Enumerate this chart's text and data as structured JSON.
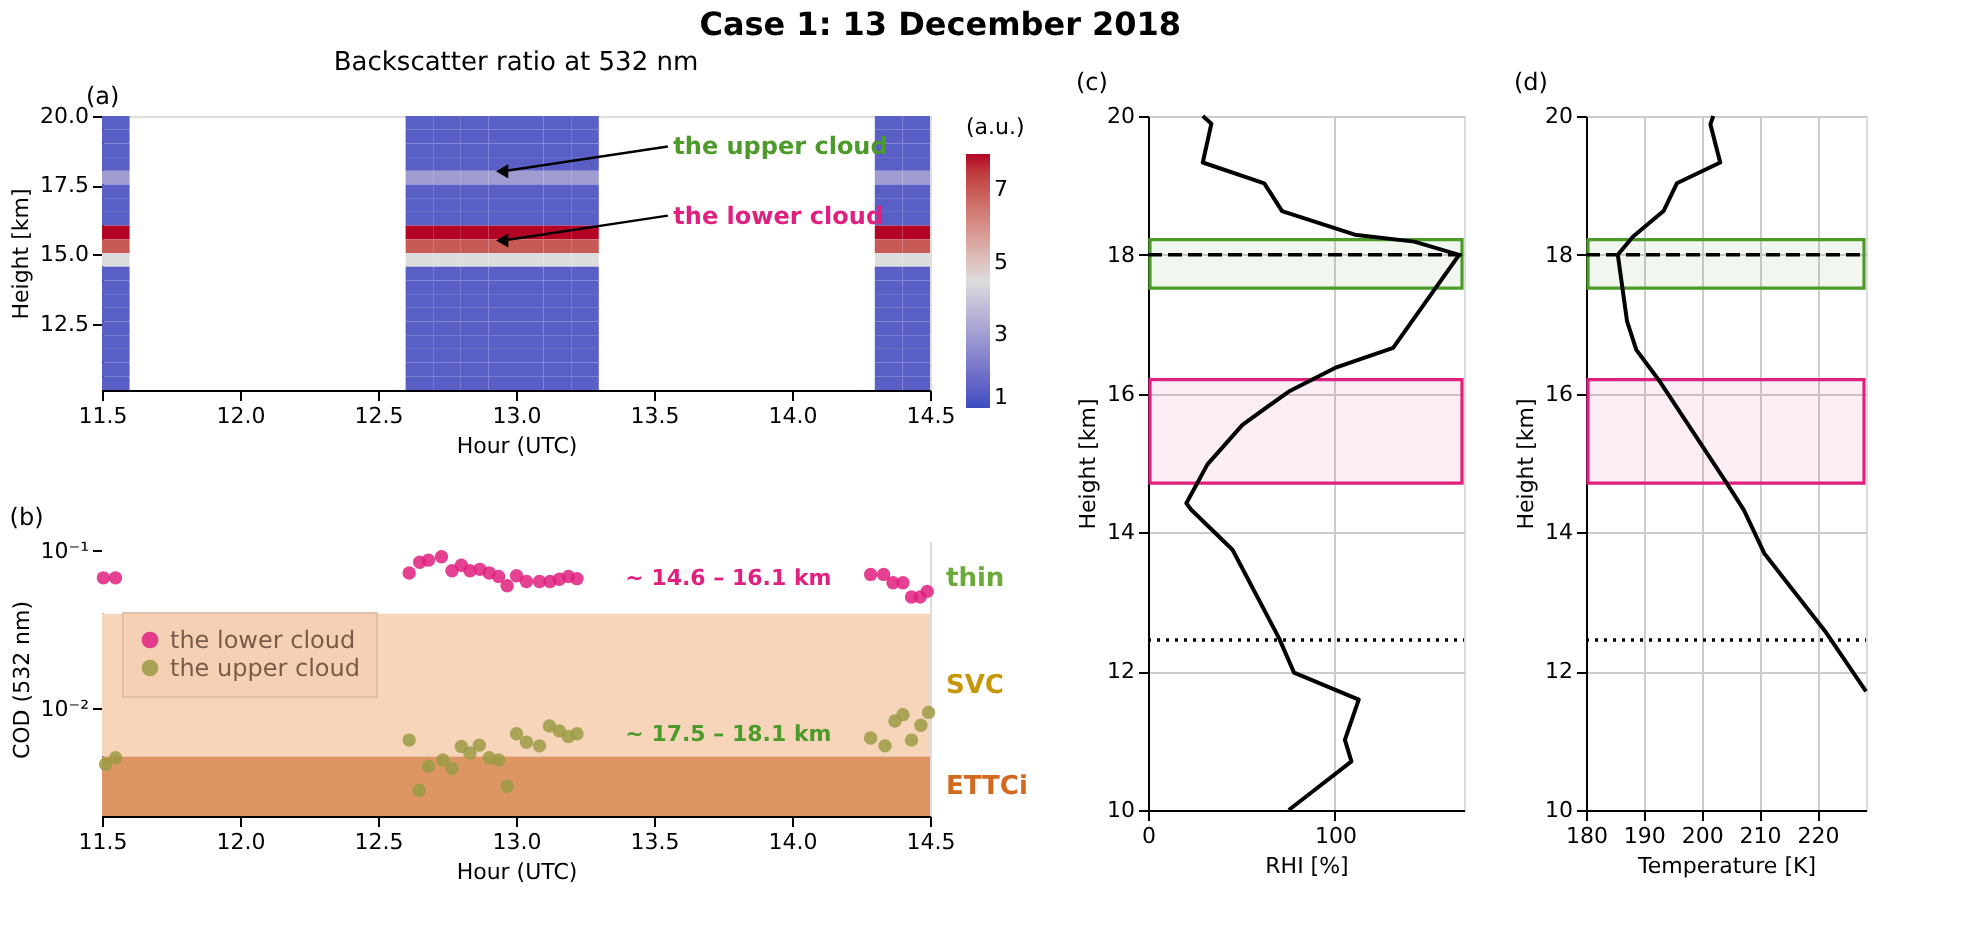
{
  "chart_data": [
    {
      "type": "heatmap",
      "title": "Case 1: 13 December 2018",
      "subtitle": "Backscatter ratio at 532 nm",
      "xlabel": "Hour (UTC)",
      "ylabel": "Height [km]",
      "clabel": "(a.u.)",
      "x": [
        11.55,
        11.65,
        11.75,
        11.85,
        11.95,
        12.05,
        12.15,
        12.25,
        12.35,
        12.45,
        12.55,
        12.65,
        12.75,
        12.85,
        12.95,
        13.05,
        13.15,
        13.25,
        13.35,
        13.45,
        13.55,
        13.65,
        13.75,
        13.85,
        13.95,
        14.05,
        14.15,
        14.25,
        14.35,
        14.45
      ],
      "cells": [
        [
          1.5,
          null,
          null,
          null,
          null,
          null,
          null,
          null,
          null,
          null,
          null,
          1.5,
          1.5,
          1.5,
          1.5,
          1.5,
          1.5,
          1.5,
          null,
          null,
          null,
          null,
          null,
          null,
          null,
          null,
          null,
          null,
          1.5,
          1.5
        ],
        [
          1.5,
          null,
          null,
          null,
          null,
          null,
          null,
          null,
          null,
          null,
          null,
          1.5,
          1.5,
          1.5,
          1.5,
          1.5,
          1.5,
          1.5,
          null,
          null,
          null,
          null,
          null,
          null,
          null,
          null,
          null,
          null,
          1.5,
          1.5
        ],
        [
          1.5,
          null,
          null,
          null,
          null,
          null,
          null,
          null,
          null,
          null,
          null,
          1.5,
          1.5,
          1.5,
          1.5,
          1.5,
          1.5,
          1.5,
          null,
          null,
          null,
          null,
          null,
          null,
          null,
          null,
          null,
          null,
          1.5,
          1.5
        ],
        [
          1.5,
          null,
          null,
          null,
          null,
          null,
          null,
          null,
          null,
          null,
          null,
          1.5,
          1.5,
          1.5,
          1.5,
          1.5,
          1.5,
          1.5,
          null,
          null,
          null,
          null,
          null,
          null,
          null,
          null,
          null,
          null,
          1.5,
          1.5
        ],
        [
          3,
          null,
          null,
          null,
          null,
          null,
          null,
          null,
          null,
          null,
          null,
          3,
          3,
          3,
          3,
          3,
          3,
          3,
          null,
          null,
          null,
          null,
          null,
          null,
          null,
          null,
          null,
          null,
          3,
          3
        ],
        [
          1.5,
          null,
          null,
          null,
          null,
          null,
          null,
          null,
          null,
          null,
          null,
          1.5,
          1.5,
          1.5,
          1.5,
          1.5,
          1.5,
          1.5,
          null,
          null,
          null,
          null,
          null,
          null,
          null,
          null,
          null,
          null,
          1.5,
          1.5
        ],
        [
          1.5,
          null,
          null,
          null,
          null,
          null,
          null,
          null,
          null,
          null,
          null,
          1.5,
          1.5,
          1.5,
          1.5,
          1.5,
          1.5,
          1.5,
          null,
          null,
          null,
          null,
          null,
          null,
          null,
          null,
          null,
          null,
          1.5,
          1.5
        ],
        [
          1.5,
          null,
          null,
          null,
          null,
          null,
          null,
          null,
          null,
          null,
          null,
          1.5,
          1.5,
          1.5,
          1.5,
          1.5,
          1.5,
          1.5,
          null,
          null,
          null,
          null,
          null,
          null,
          null,
          null,
          null,
          null,
          1.5,
          1.5
        ],
        [
          8,
          null,
          null,
          null,
          null,
          null,
          null,
          null,
          null,
          null,
          null,
          8,
          8,
          8,
          8,
          8,
          8,
          8,
          null,
          null,
          null,
          null,
          null,
          null,
          null,
          null,
          null,
          null,
          8,
          8
        ],
        [
          7,
          null,
          null,
          null,
          null,
          null,
          null,
          null,
          null,
          null,
          null,
          7,
          7,
          7,
          7,
          7,
          7,
          7,
          null,
          null,
          null,
          null,
          null,
          null,
          null,
          null,
          null,
          null,
          7,
          7
        ],
        [
          4.5,
          null,
          null,
          null,
          null,
          null,
          null,
          null,
          null,
          null,
          null,
          4.5,
          4.5,
          4.5,
          4.5,
          4.5,
          4.5,
          4.5,
          null,
          null,
          null,
          null,
          null,
          null,
          null,
          null,
          null,
          null,
          4.5,
          4.5
        ],
        [
          1.5,
          null,
          null,
          null,
          null,
          null,
          null,
          null,
          null,
          null,
          null,
          1.5,
          1.5,
          1.5,
          1.5,
          1.5,
          1.5,
          1.5,
          null,
          null,
          null,
          null,
          null,
          null,
          null,
          null,
          null,
          null,
          1.5,
          1.5
        ],
        [
          1.5,
          null,
          null,
          null,
          null,
          null,
          null,
          null,
          null,
          null,
          null,
          1.5,
          1.5,
          1.5,
          1.5,
          1.5,
          1.5,
          1.5,
          null,
          null,
          null,
          null,
          null,
          null,
          null,
          null,
          null,
          null,
          1.5,
          1.5
        ],
        [
          1.5,
          null,
          null,
          null,
          null,
          null,
          null,
          null,
          null,
          null,
          null,
          1.5,
          1.5,
          1.5,
          1.5,
          1.5,
          1.5,
          1.5,
          null,
          null,
          null,
          null,
          null,
          null,
          null,
          null,
          null,
          null,
          1.5,
          1.5
        ],
        [
          1.5,
          null,
          null,
          null,
          null,
          null,
          null,
          null,
          null,
          null,
          null,
          1.5,
          1.5,
          1.5,
          1.5,
          1.5,
          1.5,
          1.5,
          null,
          null,
          null,
          null,
          null,
          null,
          null,
          null,
          null,
          null,
          1.5,
          1.5
        ],
        [
          1.5,
          null,
          null,
          null,
          null,
          null,
          null,
          null,
          null,
          null,
          null,
          1.5,
          1.5,
          1.5,
          1.5,
          1.5,
          1.5,
          1.5,
          null,
          null,
          null,
          null,
          null,
          null,
          null,
          null,
          null,
          null,
          1.5,
          1.5
        ],
        [
          1.5,
          null,
          null,
          null,
          null,
          null,
          null,
          null,
          null,
          null,
          null,
          1.5,
          1.5,
          1.5,
          1.5,
          1.5,
          1.5,
          1.5,
          null,
          null,
          null,
          null,
          null,
          null,
          null,
          null,
          null,
          null,
          1.5,
          1.5
        ],
        [
          1.5,
          null,
          null,
          null,
          null,
          null,
          null,
          null,
          null,
          null,
          null,
          1.5,
          1.5,
          1.5,
          1.5,
          1.5,
          1.5,
          1.5,
          null,
          null,
          null,
          null,
          null,
          null,
          null,
          null,
          null,
          null,
          1.5,
          1.5
        ],
        [
          1.5,
          null,
          null,
          null,
          null,
          null,
          null,
          null,
          null,
          null,
          null,
          1.5,
          1.5,
          1.5,
          1.5,
          1.5,
          1.5,
          1.5,
          null,
          null,
          null,
          null,
          null,
          null,
          null,
          null,
          null,
          null,
          1.5,
          1.5
        ],
        [
          1.5,
          null,
          null,
          null,
          null,
          null,
          null,
          null,
          null,
          null,
          null,
          1.5,
          1.5,
          1.5,
          1.5,
          1.5,
          1.5,
          1.5,
          null,
          null,
          null,
          null,
          null,
          null,
          null,
          null,
          null,
          null,
          1.5,
          1.5
        ]
      ],
      "clim": [
        1,
        8
      ],
      "cticks": [
        1,
        3,
        5,
        7
      ],
      "xlim": [
        11.5,
        14.5
      ],
      "xticks": [
        11.5,
        {
          "value": 12,
          "label": "12.0"
        },
        12.5,
        {
          "value": 13,
          "label": "13.0"
        },
        13.5,
        {
          "value": 14,
          "label": "14.0"
        },
        14.5
      ],
      "ylim": [
        10.1,
        20
      ],
      "yticks": [
        12.5,
        {
          "value": 15,
          "label": "15.0"
        },
        17.5,
        {
          "value": 20,
          "label": "20.0"
        }
      ],
      "annotations": [
        "(a)",
        {
          "text": "the upper cloud",
          "x": 12.95,
          "y": 18.0
        },
        {
          "text": "the lower cloud",
          "x": 12.95,
          "y": 15.5
        }
      ]
    },
    {
      "type": "scatter",
      "xlabel": "Hour (UTC)",
      "ylabel": "COD (532 nm)",
      "log": true,
      "xlim": [
        11.5,
        14.5
      ],
      "xticks": [
        11.5,
        {
          "value": 12,
          "label": "12.0"
        },
        12.5,
        {
          "value": 13,
          "label": "13.0"
        },
        13.5,
        {
          "value": 14,
          "label": "14.0"
        },
        14.5
      ],
      "ylim": [
        0.0021,
        0.114
      ],
      "yticks": [
        {
          "value": 0.1,
          "label": "10⁻¹"
        },
        {
          "value": 0.01,
          "label": "10⁻²"
        }
      ],
      "legend": "left",
      "marker": "circle",
      "bands": [
        {
          "axis": "y",
          "from": 0.04,
          "to": 0.114,
          "label": "thin",
          "color": "#ffffff"
        },
        {
          "axis": "y",
          "from": 0.005,
          "to": 0.04,
          "label": "SVC",
          "color": "#f7d5bb"
        },
        {
          "axis": "y",
          "from": 0.0021,
          "to": 0.005,
          "label": "ETTCi",
          "color": "#dc9563"
        }
      ],
      "series": [
        {
          "name": "the lower cloud",
          "color": "#e0207f",
          "x": [
            11.505,
            11.549,
            12.613,
            12.651,
            12.683,
            12.73,
            12.768,
            12.802,
            12.833,
            12.869,
            12.903,
            12.937,
            12.968,
            13.002,
            13.038,
            13.085,
            13.123,
            13.157,
            13.19,
            13.221,
            14.285,
            14.332,
            14.366,
            14.402,
            14.433,
            14.464,
            14.49
          ],
          "values": [
            0.0676,
            0.0676,
            0.0726,
            0.0848,
            0.0875,
            0.092,
            0.0749,
            0.0813,
            0.0749,
            0.0765,
            0.0726,
            0.069,
            0.0603,
            0.0697,
            0.0641,
            0.0641,
            0.0641,
            0.0662,
            0.069,
            0.0668,
            0.0711,
            0.0711,
            0.0629,
            0.0629,
            0.0511,
            0.0511,
            0.0555
          ]
        },
        {
          "name": "the upper cloud",
          "color": "#9b9b45",
          "x": [
            11.513,
            11.549,
            12.613,
            12.649,
            12.683,
            12.735,
            12.768,
            12.802,
            12.833,
            12.867,
            12.903,
            12.937,
            12.968,
            13.002,
            13.038,
            13.085,
            13.121,
            13.157,
            13.19,
            13.221,
            14.285,
            14.337,
            14.373,
            14.402,
            14.433,
            14.467,
            14.495
          ],
          "values": [
            0.00447,
            0.00491,
            0.00635,
            0.00305,
            0.00434,
            0.00475,
            0.0042,
            0.00578,
            0.00527,
            0.0059,
            0.00491,
            0.00475,
            0.00324,
            0.00697,
            0.00616,
            0.00584,
            0.0078,
            0.00726,
            0.00669,
            0.00697,
            0.00655,
            0.00584,
            0.00839,
            0.0092,
            0.00635,
            0.00788,
            0.00951
          ]
        }
      ],
      "annotations": [
        "(b)",
        "~ 14.6 – 16.1 km",
        "~ 17.5 – 18.1 km"
      ]
    },
    {
      "type": "line",
      "xlabel": "RHI [%]",
      "ylabel": "Height [km]",
      "grid": true,
      "line_style": "solid",
      "marker": "none",
      "xlim": [
        0,
        169
      ],
      "xticks": [
        0,
        100
      ],
      "ylim": [
        10,
        20
      ],
      "yticks": [
        10,
        12,
        14,
        16,
        18,
        20
      ],
      "series": [
        {
          "color": "#000000",
          "x": [
            75.3,
            108.8,
            105.3,
            112.7,
            78.1,
            70.0,
            45.2,
            23.0,
            20.5,
            31.8,
            50.5,
            75.3,
            100.0,
            131.1,
            166.4,
            142.4,
            110.6,
            71.7,
            62.2,
            29.3,
            33.9,
            29.3
          ],
          "values": [
            10.0,
            10.7,
            11.01,
            11.59,
            11.98,
            12.48,
            13.75,
            14.33,
            14.42,
            14.98,
            15.55,
            16.03,
            16.37,
            16.66,
            18.0,
            18.19,
            18.29,
            18.63,
            19.03,
            19.33,
            19.89,
            20.0
          ]
        }
      ],
      "bands": [
        {
          "axis": "y",
          "from": 17.52,
          "to": 18.22,
          "color": "#4c9a2a"
        },
        {
          "axis": "y",
          "from": 14.71,
          "to": 16.2,
          "color": "#e0207f"
        }
      ],
      "ref_lines": [
        {
          "axis": "y",
          "value": 18.0,
          "line_style": "dashed",
          "color": "#000000"
        },
        {
          "axis": "y",
          "value": 12.45,
          "line_style": "dotted",
          "color": "#000000"
        }
      ],
      "annotations": [
        "(c)"
      ]
    },
    {
      "type": "line",
      "xlabel": "Temperature [K]",
      "ylabel": "Height [km]",
      "grid": true,
      "line_style": "solid",
      "marker": "none",
      "xlim": [
        180,
        228.4
      ],
      "xticks": [
        180,
        190,
        200,
        210,
        220
      ],
      "ylim": [
        10,
        20
      ],
      "yticks": [
        10,
        12,
        14,
        16,
        18,
        20
      ],
      "series": [
        {
          "color": "#000000",
          "x": [
            202.0,
            201.5,
            203.2,
            195.7,
            193.4,
            188.1,
            185.5,
            187.1,
            188.7,
            192.8,
            204.1,
            207.3,
            210.8,
            221.3,
            228.4
          ],
          "values": [
            20.0,
            19.88,
            19.33,
            19.03,
            18.63,
            18.26,
            18.0,
            17.04,
            16.63,
            16.17,
            14.74,
            14.32,
            13.7,
            12.58,
            11.71
          ]
        }
      ],
      "bands": [
        {
          "axis": "y",
          "from": 17.52,
          "to": 18.22,
          "color": "#4c9a2a"
        },
        {
          "axis": "y",
          "from": 14.71,
          "to": 16.2,
          "color": "#e0207f"
        }
      ],
      "ref_lines": [
        {
          "axis": "y",
          "value": 18.0,
          "line_style": "dashed",
          "color": "#000000"
        },
        {
          "axis": "y",
          "value": 12.45,
          "line_style": "dotted",
          "color": "#000000"
        }
      ],
      "annotations": [
        "(d)"
      ]
    }
  ]
}
